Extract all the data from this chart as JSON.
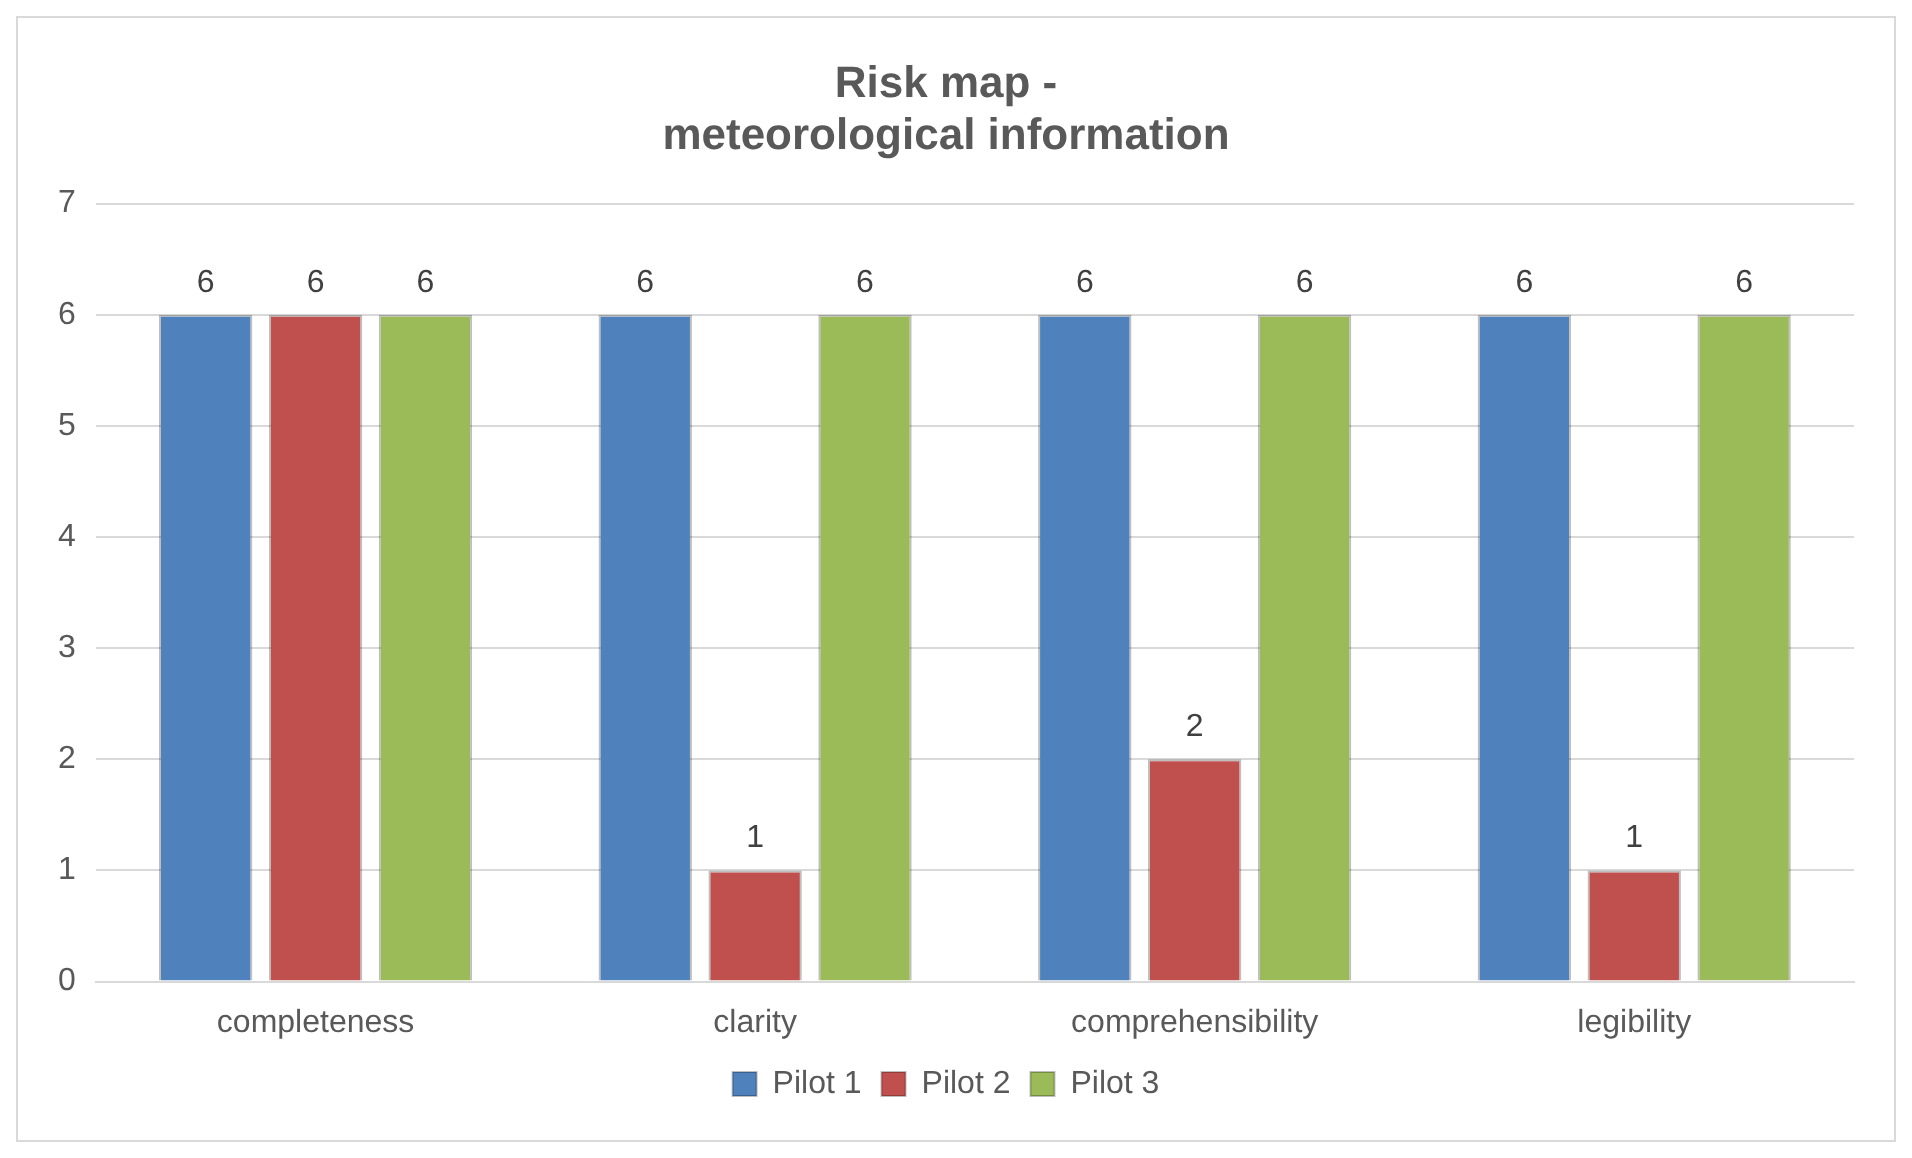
{
  "chart_data": {
    "type": "bar",
    "title": "Risk map -\nmeteorological information",
    "categories": [
      "completeness",
      "clarity",
      "comprehensibility",
      "legibility"
    ],
    "series": [
      {
        "name": "Pilot 1",
        "color": "#4f81bd",
        "values": [
          6,
          6,
          6,
          6
        ]
      },
      {
        "name": "Pilot 2",
        "color": "#c0504d",
        "values": [
          6,
          1,
          2,
          1
        ]
      },
      {
        "name": "Pilot 3",
        "color": "#9bbb59",
        "values": [
          6,
          6,
          6,
          6
        ]
      }
    ],
    "ylim": [
      0,
      7
    ],
    "yticks": [
      0,
      1,
      2,
      3,
      4,
      5,
      6,
      7
    ],
    "grid": "y",
    "legend": "bottom",
    "data_labels": true
  }
}
